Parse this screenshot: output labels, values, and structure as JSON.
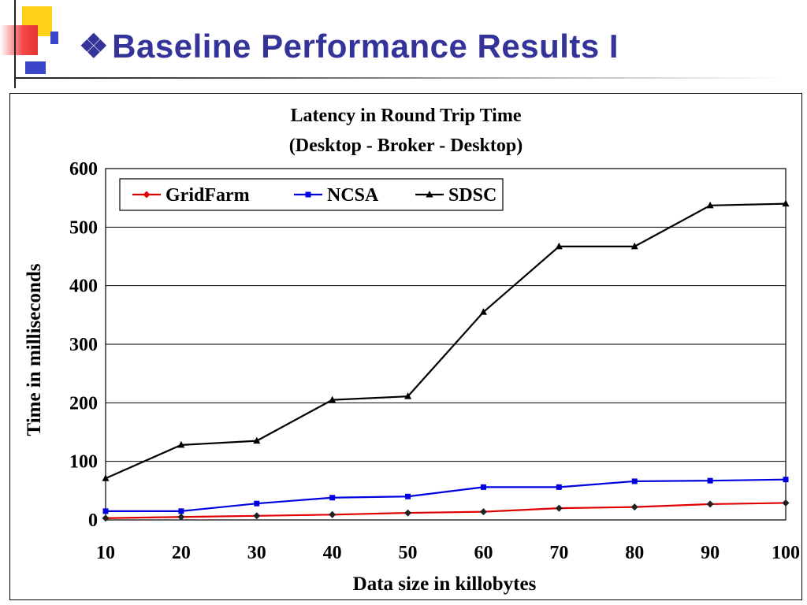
{
  "slide": {
    "title_bullet": "❖",
    "title": "Baseline Performance Results I"
  },
  "colors": {
    "title": "#33339a",
    "gridfarm": "#e00000",
    "ncsa": "#0000e0",
    "sdsc": "#000000"
  },
  "chart_data": {
    "type": "line",
    "title": "Latency in Round Trip Time",
    "subtitle": "(Desktop - Broker - Desktop)",
    "xlabel": "Data size in killobytes",
    "ylabel": "Time in milliseconds",
    "x": [
      10,
      20,
      30,
      40,
      50,
      60,
      70,
      80,
      90,
      100
    ],
    "xticks": [
      "10",
      "20",
      "30",
      "40",
      "50",
      "60",
      "70",
      "80",
      "90",
      "100"
    ],
    "ylim": [
      0,
      600
    ],
    "yticks": [
      "0",
      "100",
      "200",
      "300",
      "400",
      "500",
      "600"
    ],
    "grid": "horizontal",
    "legend_position": "top-left",
    "series": [
      {
        "name": "GridFarm",
        "marker": "diamond",
        "values": [
          3,
          5,
          7,
          9,
          12,
          14,
          20,
          22,
          27,
          29
        ]
      },
      {
        "name": "NCSA",
        "marker": "square",
        "values": [
          15,
          15,
          28,
          38,
          40,
          56,
          56,
          66,
          67,
          69
        ]
      },
      {
        "name": "SDSC",
        "marker": "triangle",
        "values": [
          71,
          128,
          135,
          205,
          211,
          355,
          467,
          467,
          537,
          540
        ]
      }
    ]
  }
}
